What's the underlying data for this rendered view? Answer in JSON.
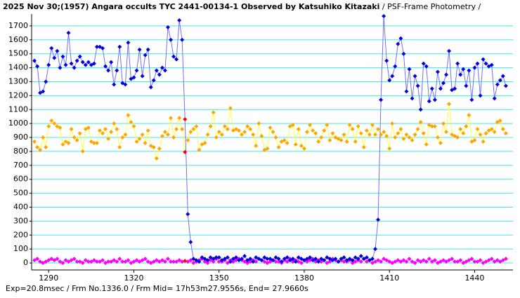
{
  "chart_data": {
    "type": "scatter-line",
    "title": "2025 Nov 30;(1957) Angara occults TYC 2441-00134-1 Observed by Katsuhiko Kitazaki",
    "subtitle": " / PSF-Frame Photometry /",
    "footer": "Exp=20.8msec / Frm No.1336.0 / Frm Mid= 17h53m27.9556s, End= 27.9660s",
    "xlim": [
      1284,
      1453.5
    ],
    "xticks": [
      1290,
      1320,
      1350,
      1380,
      1410,
      1440
    ],
    "ylim": [
      -50,
      1785
    ],
    "yticks": [
      0,
      100,
      200,
      300,
      400,
      500,
      600,
      700,
      800,
      900,
      1000,
      1100,
      1200,
      1300,
      1400,
      1500,
      1600,
      1700
    ],
    "grid": true,
    "grid_color": "#40e8e8",
    "highlight_x": 1338,
    "highlight_color": "#ff0000",
    "x": [
      1285,
      1286,
      1287,
      1288,
      1289,
      1290,
      1291,
      1292,
      1293,
      1294,
      1295,
      1296,
      1297,
      1298,
      1299,
      1300,
      1301,
      1302,
      1303,
      1304,
      1305,
      1306,
      1307,
      1308,
      1309,
      1310,
      1311,
      1312,
      1313,
      1314,
      1315,
      1316,
      1317,
      1318,
      1319,
      1320,
      1321,
      1322,
      1323,
      1324,
      1325,
      1326,
      1327,
      1328,
      1329,
      1330,
      1331,
      1332,
      1333,
      1334,
      1335,
      1336,
      1337,
      1338,
      1339,
      1340,
      1341,
      1342,
      1343,
      1344,
      1345,
      1346,
      1347,
      1348,
      1349,
      1350,
      1351,
      1352,
      1353,
      1354,
      1355,
      1356,
      1357,
      1358,
      1359,
      1360,
      1361,
      1362,
      1363,
      1364,
      1365,
      1366,
      1367,
      1368,
      1369,
      1370,
      1371,
      1372,
      1373,
      1374,
      1375,
      1376,
      1377,
      1378,
      1379,
      1380,
      1381,
      1382,
      1383,
      1384,
      1385,
      1386,
      1387,
      1388,
      1389,
      1390,
      1391,
      1392,
      1393,
      1394,
      1395,
      1396,
      1397,
      1398,
      1399,
      1400,
      1401,
      1402,
      1403,
      1404,
      1405,
      1406,
      1407,
      1408,
      1409,
      1410,
      1411,
      1412,
      1413,
      1414,
      1415,
      1416,
      1417,
      1418,
      1419,
      1420,
      1421,
      1422,
      1423,
      1424,
      1425,
      1426,
      1427,
      1428,
      1429,
      1430,
      1431,
      1432,
      1433,
      1434,
      1435,
      1436,
      1437,
      1438,
      1439,
      1440,
      1441,
      1442,
      1443,
      1444,
      1445,
      1446,
      1447,
      1448,
      1449,
      1450,
      1451
    ],
    "series": [
      {
        "color": "#ff00ff",
        "line_color": "#ff80ff",
        "values": [
          20,
          30,
          10,
          0,
          10,
          20,
          30,
          20,
          30,
          10,
          0,
          20,
          10,
          20,
          30,
          10,
          10,
          0,
          20,
          10,
          10,
          20,
          10,
          10,
          20,
          0,
          10,
          10,
          20,
          10,
          30,
          10,
          10,
          20,
          0,
          10,
          20,
          10,
          20,
          30,
          10,
          0,
          10,
          20,
          10,
          20,
          10,
          30,
          10,
          10,
          10,
          20,
          10,
          15,
          10,
          20,
          0,
          10,
          20,
          30,
          10,
          0,
          20,
          10,
          30,
          10,
          10,
          20,
          0,
          20,
          10,
          20,
          30,
          20,
          10,
          0,
          10,
          20,
          10,
          30,
          20,
          10,
          0,
          10,
          20,
          10,
          10,
          0,
          20,
          10,
          30,
          10,
          20,
          10,
          0,
          20,
          10,
          20,
          30,
          10,
          20,
          10,
          20,
          0,
          10,
          30,
          20,
          10,
          20,
          10,
          10,
          20,
          0,
          10,
          20,
          10,
          30,
          10,
          20,
          0,
          10,
          20,
          10,
          30,
          20,
          10,
          0,
          10,
          20,
          10,
          20,
          10,
          30,
          10,
          0,
          20,
          10,
          20,
          10,
          30,
          10,
          20,
          0,
          10,
          20,
          10,
          20,
          30,
          10,
          10,
          20,
          0,
          10,
          20,
          30,
          10,
          10,
          20,
          0,
          10,
          20,
          30,
          10,
          20,
          10,
          20,
          30
        ]
      },
      {
        "color": "#ffa500",
        "line_color": "#ffff40",
        "values": [
          870,
          830,
          810,
          900,
          830,
          980,
          1020,
          1000,
          980,
          970,
          850,
          870,
          860,
          960,
          900,
          880,
          930,
          800,
          960,
          970,
          870,
          860,
          860,
          950,
          930,
          960,
          890,
          940,
          1000,
          960,
          830,
          900,
          920,
          1060,
          1010,
          980,
          870,
          890,
          920,
          860,
          950,
          840,
          830,
          750,
          820,
          910,
          940,
          920,
          1040,
          900,
          960,
          1040,
          960,
          795,
          880,
          940,
          960,
          980,
          810,
          850,
          860,
          920,
          980,
          1080,
          900,
          940,
          920,
          980,
          960,
          1110,
          950,
          960,
          950,
          920,
          940,
          980,
          960,
          920,
          840,
          1000,
          910,
          810,
          820,
          970,
          940,
          900,
          830,
          870,
          880,
          860,
          980,
          990,
          850,
          960,
          840,
          820,
          940,
          990,
          950,
          930,
          870,
          900,
          950,
          990,
          880,
          930,
          900,
          890,
          880,
          920,
          870,
          990,
          960,
          870,
          980,
          930,
          830,
          950,
          920,
          990,
          920,
          960,
          920,
          940,
          910,
          820,
          1000,
          900,
          930,
          960,
          890,
          920,
          900,
          880,
          920,
          960,
          1010,
          930,
          850,
          990,
          980,
          980,
          900,
          860,
          1000,
          940,
          1140,
          920,
          910,
          900,
          960,
          930,
          980,
          1060,
          870,
          880,
          960,
          920,
          870,
          930,
          950,
          960,
          940,
          1010,
          1020,
          960,
          930
        ]
      },
      {
        "color": "#0000e0",
        "line_color": "#7070ff",
        "values": [
          1450,
          1410,
          1220,
          1230,
          1300,
          1420,
          1540,
          1470,
          1520,
          1400,
          1480,
          1420,
          1650,
          1430,
          1400,
          1450,
          1480,
          1440,
          1420,
          1440,
          1420,
          1430,
          1550,
          1550,
          1540,
          1410,
          1380,
          1440,
          1280,
          1380,
          1550,
          1290,
          1280,
          1580,
          1320,
          1330,
          1380,
          1530,
          1340,
          1490,
          1530,
          1260,
          1310,
          1380,
          1350,
          1400,
          1380,
          1690,
          1600,
          1480,
          1460,
          1740,
          1600,
          1030,
          350,
          150,
          30,
          20,
          10,
          40,
          30,
          20,
          40,
          30,
          40,
          40,
          20,
          30,
          40,
          10,
          30,
          40,
          20,
          30,
          50,
          20,
          30,
          10,
          40,
          30,
          20,
          40,
          30,
          30,
          20,
          40,
          30,
          10,
          30,
          40,
          20,
          30,
          10,
          40,
          30,
          20,
          30,
          40,
          20,
          30,
          10,
          30,
          20,
          40,
          30,
          20,
          30,
          10,
          30,
          40,
          20,
          30,
          20,
          40,
          30,
          50,
          30,
          40,
          20,
          30,
          100,
          310,
          1170,
          1770,
          1450,
          1310,
          1340,
          1410,
          1570,
          1610,
          1500,
          1230,
          1390,
          1180,
          1340,
          1270,
          1100,
          1430,
          1410,
          1160,
          1250,
          1170,
          1370,
          1250,
          1290,
          1350,
          1520,
          1240,
          1250,
          1430,
          1350,
          1390,
          1270,
          1380,
          1170,
          1400,
          1430,
          1200,
          1460,
          1430,
          1410,
          1420,
          1180,
          1280,
          1310,
          1340,
          1270
        ]
      }
    ]
  }
}
